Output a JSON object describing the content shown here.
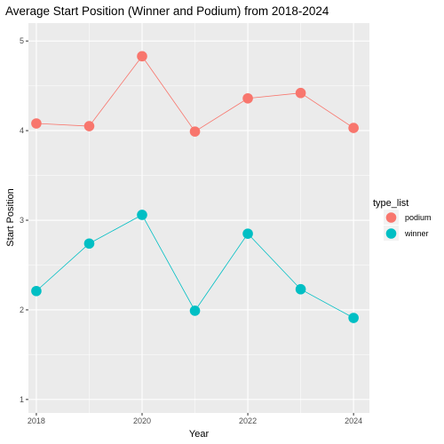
{
  "chart_data": {
    "type": "line",
    "title": "Average Start Position (Winner and Podium) from 2018-2024",
    "xlabel": "Year",
    "ylabel": "Start Position",
    "x": [
      2018,
      2019,
      2020,
      2021,
      2022,
      2023,
      2024
    ],
    "xticks": [
      2018,
      2020,
      2022,
      2024
    ],
    "yticks": [
      1,
      2,
      3,
      4,
      5
    ],
    "xlim": [
      2017.85,
      2024.3
    ],
    "ylim": [
      0.85,
      5.2
    ],
    "grid": true,
    "legend": {
      "title": "type_list",
      "position": "right"
    },
    "series": [
      {
        "name": "podium",
        "color": "#F8766D",
        "values": [
          4.08,
          4.05,
          4.83,
          3.99,
          4.36,
          4.42,
          4.03
        ]
      },
      {
        "name": "winner",
        "color": "#00BFC4",
        "values": [
          2.21,
          2.74,
          3.06,
          1.99,
          2.85,
          2.23,
          1.91
        ]
      }
    ]
  }
}
